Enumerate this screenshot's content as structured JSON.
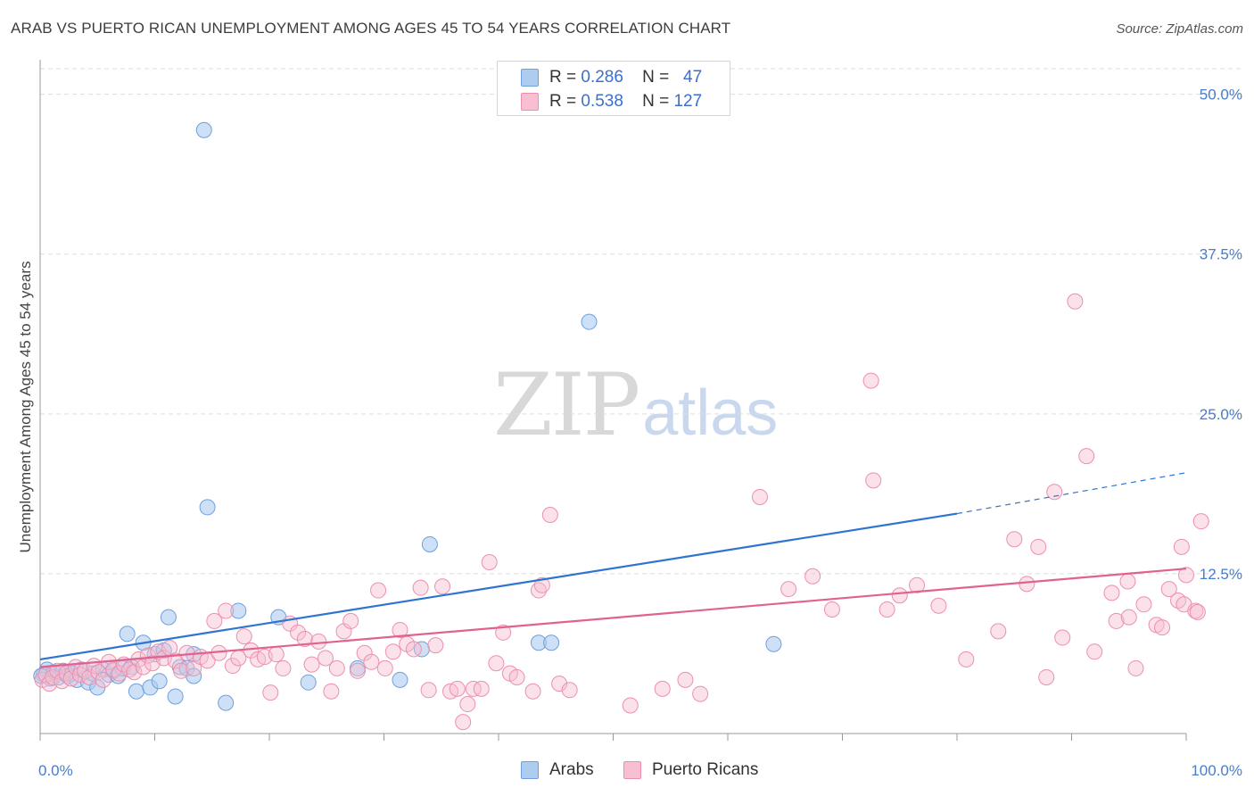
{
  "title": "ARAB VS PUERTO RICAN UNEMPLOYMENT AMONG AGES 45 TO 54 YEARS CORRELATION CHART",
  "source": "Source: ZipAtlas.com",
  "watermark": {
    "zip": "ZIP",
    "atlas": "atlas"
  },
  "legend_top": {
    "rows": [
      {
        "r_label": "R =",
        "r_value": "0.286",
        "n_label": "N =",
        "n_value": "47"
      },
      {
        "r_label": "R =",
        "r_value": "0.538",
        "n_label": "N =",
        "n_value": "127"
      }
    ]
  },
  "legend_bottom": {
    "arabs": "Arabs",
    "puerto_ricans": "Puerto Ricans"
  },
  "colors": {
    "arab_fill": "#aecbf0",
    "arab_stroke": "#6f9fdc",
    "arab_line": "#2f74d0",
    "pr_fill": "#f7bfd1",
    "pr_stroke": "#ec8fae",
    "pr_line": "#e0628f",
    "grid": "#dddddd",
    "axis_label": "#4a7cc9"
  },
  "chart_data": {
    "type": "scatter",
    "title": "ARAB VS PUERTO RICAN UNEMPLOYMENT AMONG AGES 45 TO 54 YEARS CORRELATION CHART",
    "xlabel": "",
    "ylabel": "Unemployment Among Ages 45 to 54 years",
    "xlim": [
      0,
      100
    ],
    "ylim": [
      0,
      52
    ],
    "x_tick_labels": [
      "0.0%",
      "100.0%"
    ],
    "y_ticks": [
      12.5,
      25.0,
      37.5,
      50.0
    ],
    "y_tick_labels": [
      "12.5%",
      "25.0%",
      "37.5%",
      "50.0%"
    ],
    "grid": true,
    "legend_position": "top-center",
    "series": [
      {
        "name": "Arabs",
        "r": 0.286,
        "n": 47,
        "trend": {
          "x0": 0,
          "y0": 5.8,
          "x1": 80,
          "y1": 17.2,
          "dashed_to_x": 100,
          "dashed_to_y": 20.4
        },
        "points": [
          [
            0.3,
            4.6
          ],
          [
            0.6,
            5.0
          ],
          [
            0.9,
            4.3
          ],
          [
            1.2,
            4.8
          ],
          [
            1.6,
            4.4
          ],
          [
            2.0,
            4.9
          ],
          [
            2.4,
            4.5
          ],
          [
            2.8,
            4.7
          ],
          [
            3.2,
            4.2
          ],
          [
            3.6,
            5.0
          ],
          [
            4.2,
            4.0
          ],
          [
            4.6,
            4.7
          ],
          [
            5.0,
            3.6
          ],
          [
            5.5,
            5.0
          ],
          [
            6.0,
            4.6
          ],
          [
            6.4,
            4.9
          ],
          [
            6.8,
            4.5
          ],
          [
            7.2,
            5.1
          ],
          [
            7.6,
            7.8
          ],
          [
            8.0,
            5.2
          ],
          [
            8.4,
            3.3
          ],
          [
            9.0,
            7.1
          ],
          [
            9.6,
            3.6
          ],
          [
            10.0,
            6.2
          ],
          [
            10.4,
            4.1
          ],
          [
            10.8,
            6.5
          ],
          [
            11.2,
            9.1
          ],
          [
            11.8,
            2.9
          ],
          [
            12.2,
            5.2
          ],
          [
            12.8,
            5.1
          ],
          [
            13.4,
            4.5
          ],
          [
            13.4,
            6.2
          ],
          [
            14.3,
            47.2
          ],
          [
            14.6,
            17.7
          ],
          [
            16.2,
            2.4
          ],
          [
            17.3,
            9.6
          ],
          [
            20.8,
            9.1
          ],
          [
            23.4,
            4.0
          ],
          [
            27.7,
            5.1
          ],
          [
            31.4,
            4.2
          ],
          [
            33.3,
            6.6
          ],
          [
            34.0,
            14.8
          ],
          [
            43.5,
            7.1
          ],
          [
            44.6,
            7.1
          ],
          [
            47.9,
            32.2
          ],
          [
            64.0,
            7.0
          ],
          [
            0.1,
            4.5
          ]
        ]
      },
      {
        "name": "Puerto Ricans",
        "r": 0.538,
        "n": 127,
        "trend": {
          "x0": 0,
          "y0": 5.2,
          "x1": 100,
          "y1": 12.9
        },
        "points": [
          [
            0.2,
            4.2
          ],
          [
            0.5,
            4.6
          ],
          [
            0.8,
            3.9
          ],
          [
            1.1,
            4.4
          ],
          [
            1.5,
            4.9
          ],
          [
            1.9,
            4.1
          ],
          [
            2.3,
            4.7
          ],
          [
            2.7,
            4.3
          ],
          [
            3.1,
            5.2
          ],
          [
            3.5,
            4.6
          ],
          [
            3.9,
            4.9
          ],
          [
            4.3,
            4.4
          ],
          [
            4.7,
            5.3
          ],
          [
            5.1,
            4.8
          ],
          [
            5.5,
            4.2
          ],
          [
            6.0,
            5.6
          ],
          [
            6.4,
            5.0
          ],
          [
            6.9,
            4.7
          ],
          [
            7.3,
            5.4
          ],
          [
            7.8,
            5.0
          ],
          [
            8.2,
            4.8
          ],
          [
            8.6,
            5.8
          ],
          [
            9.0,
            5.2
          ],
          [
            9.4,
            6.1
          ],
          [
            9.8,
            5.5
          ],
          [
            10.3,
            6.4
          ],
          [
            10.8,
            5.9
          ],
          [
            11.3,
            6.7
          ],
          [
            11.8,
            5.7
          ],
          [
            12.3,
            4.9
          ],
          [
            12.8,
            6.3
          ],
          [
            13.4,
            5.1
          ],
          [
            14.0,
            6.0
          ],
          [
            14.6,
            5.7
          ],
          [
            15.2,
            8.8
          ],
          [
            15.6,
            6.3
          ],
          [
            16.2,
            9.6
          ],
          [
            16.8,
            5.3
          ],
          [
            17.3,
            5.9
          ],
          [
            17.8,
            7.6
          ],
          [
            18.4,
            6.5
          ],
          [
            19.0,
            5.8
          ],
          [
            19.6,
            6.0
          ],
          [
            20.1,
            3.2
          ],
          [
            20.6,
            6.2
          ],
          [
            21.2,
            5.1
          ],
          [
            21.8,
            8.6
          ],
          [
            22.5,
            7.9
          ],
          [
            23.1,
            7.4
          ],
          [
            23.7,
            5.4
          ],
          [
            24.3,
            7.2
          ],
          [
            24.9,
            5.9
          ],
          [
            25.4,
            3.3
          ],
          [
            25.9,
            5.1
          ],
          [
            26.5,
            8.0
          ],
          [
            27.1,
            8.8
          ],
          [
            27.7,
            4.9
          ],
          [
            28.3,
            6.3
          ],
          [
            28.9,
            5.6
          ],
          [
            29.5,
            11.2
          ],
          [
            30.1,
            5.1
          ],
          [
            30.8,
            6.4
          ],
          [
            31.4,
            8.1
          ],
          [
            32.0,
            7.0
          ],
          [
            32.6,
            6.6
          ],
          [
            33.2,
            11.4
          ],
          [
            33.9,
            3.4
          ],
          [
            34.5,
            6.9
          ],
          [
            35.1,
            11.5
          ],
          [
            35.8,
            3.3
          ],
          [
            36.4,
            3.5
          ],
          [
            36.9,
            0.9
          ],
          [
            37.3,
            2.3
          ],
          [
            37.8,
            3.5
          ],
          [
            38.5,
            3.5
          ],
          [
            39.2,
            13.4
          ],
          [
            39.8,
            5.5
          ],
          [
            40.4,
            7.9
          ],
          [
            41.0,
            4.7
          ],
          [
            41.6,
            4.4
          ],
          [
            43.0,
            3.3
          ],
          [
            43.5,
            11.2
          ],
          [
            43.8,
            11.6
          ],
          [
            44.5,
            17.1
          ],
          [
            45.3,
            3.9
          ],
          [
            46.2,
            3.4
          ],
          [
            51.5,
            2.2
          ],
          [
            54.3,
            3.5
          ],
          [
            56.3,
            4.2
          ],
          [
            57.6,
            3.1
          ],
          [
            62.8,
            18.5
          ],
          [
            65.3,
            11.3
          ],
          [
            67.4,
            12.3
          ],
          [
            69.1,
            9.7
          ],
          [
            72.5,
            27.6
          ],
          [
            72.7,
            19.8
          ],
          [
            73.9,
            9.7
          ],
          [
            75.0,
            10.8
          ],
          [
            76.5,
            11.6
          ],
          [
            78.4,
            10.0
          ],
          [
            80.8,
            5.8
          ],
          [
            83.6,
            8.0
          ],
          [
            85.0,
            15.2
          ],
          [
            86.1,
            11.7
          ],
          [
            87.1,
            14.6
          ],
          [
            87.8,
            4.4
          ],
          [
            88.5,
            18.9
          ],
          [
            89.2,
            7.5
          ],
          [
            90.3,
            33.8
          ],
          [
            91.3,
            21.7
          ],
          [
            92.0,
            6.4
          ],
          [
            93.5,
            11.0
          ],
          [
            93.9,
            8.8
          ],
          [
            94.9,
            11.9
          ],
          [
            95.0,
            9.1
          ],
          [
            95.6,
            5.1
          ],
          [
            96.3,
            10.1
          ],
          [
            97.4,
            8.5
          ],
          [
            97.9,
            8.3
          ],
          [
            98.5,
            11.3
          ],
          [
            99.3,
            10.4
          ],
          [
            99.6,
            14.6
          ],
          [
            99.8,
            10.1
          ],
          [
            100.0,
            12.4
          ],
          [
            100.8,
            9.6
          ],
          [
            101.0,
            9.5
          ],
          [
            101.3,
            16.6
          ]
        ]
      }
    ]
  }
}
